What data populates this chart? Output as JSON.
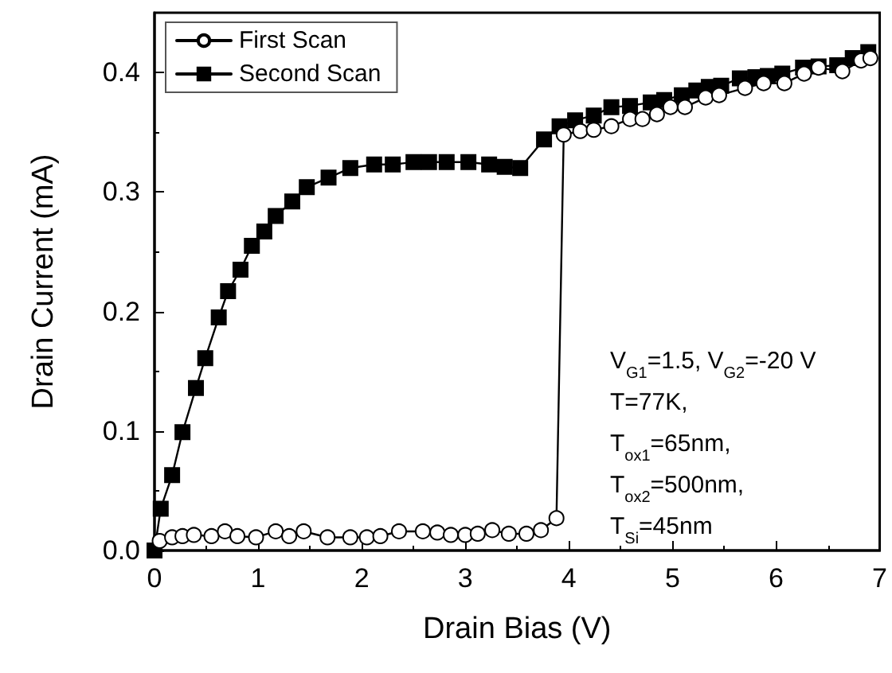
{
  "chart_data": {
    "type": "line",
    "xlabel": "Drain Bias (V)",
    "ylabel": "Drain Current (mA)",
    "xlim": [
      0,
      7
    ],
    "xticks": [
      0,
      1,
      2,
      3,
      4,
      5,
      6,
      7
    ],
    "ylim": [
      0,
      0.45
    ],
    "yticks": [
      {
        "value": 0,
        "label": "0.0"
      },
      0.1,
      0.2,
      0.3,
      0.4
    ],
    "grid": false,
    "legend": "top left",
    "line_style": "solid",
    "annotations": [
      "V$_{G1}$=1.5, V$_{G2}$=-20 V",
      "T=77K,",
      "T$_{ox1}$=65nm,",
      "T$_{ox2}$=500nm,",
      "T$_{Si}$=45nm"
    ],
    "series": [
      {
        "name": "First Scan",
        "color": "#000000",
        "marker": "circle",
        "x": [
          0.05,
          0.17,
          0.27,
          0.38,
          0.55,
          0.68,
          0.8,
          0.98,
          1.17,
          1.3,
          1.44,
          1.67,
          1.89,
          2.05,
          2.18,
          2.36,
          2.59,
          2.73,
          2.86,
          3.0,
          3.12,
          3.26,
          3.42,
          3.59,
          3.73,
          3.88,
          3.95,
          4.11,
          4.24,
          4.41,
          4.59,
          4.71,
          4.85,
          4.98,
          5.12,
          5.32,
          5.45,
          5.7,
          5.88,
          6.08,
          6.27,
          6.41,
          6.64,
          6.82,
          6.91
        ],
        "values": [
          0.008,
          0.011,
          0.012,
          0.013,
          0.012,
          0.016,
          0.012,
          0.011,
          0.016,
          0.012,
          0.016,
          0.011,
          0.011,
          0.011,
          0.012,
          0.016,
          0.016,
          0.015,
          0.013,
          0.013,
          0.014,
          0.017,
          0.014,
          0.014,
          0.017,
          0.027,
          0.348,
          0.351,
          0.352,
          0.355,
          0.361,
          0.361,
          0.365,
          0.371,
          0.371,
          0.379,
          0.381,
          0.387,
          0.391,
          0.391,
          0.399,
          0.404,
          0.401,
          0.41,
          0.412
        ]
      },
      {
        "name": "Second Scan",
        "color": "#000000",
        "marker": "square",
        "x": [
          0.0,
          0.06,
          0.17,
          0.27,
          0.4,
          0.49,
          0.62,
          0.71,
          0.83,
          0.94,
          1.06,
          1.17,
          1.33,
          1.47,
          1.68,
          1.89,
          2.12,
          2.3,
          2.5,
          2.65,
          2.82,
          3.03,
          3.23,
          3.38,
          3.53,
          3.76,
          3.91,
          4.06,
          4.24,
          4.41,
          4.59,
          4.79,
          4.92,
          5.09,
          5.23,
          5.35,
          5.47,
          5.65,
          5.8,
          5.92,
          6.06,
          6.26,
          6.41,
          6.59,
          6.74,
          6.89
        ],
        "values": [
          0.0,
          0.035,
          0.063,
          0.099,
          0.136,
          0.161,
          0.195,
          0.217,
          0.235,
          0.255,
          0.267,
          0.28,
          0.292,
          0.304,
          0.312,
          0.32,
          0.323,
          0.323,
          0.325,
          0.325,
          0.325,
          0.325,
          0.323,
          0.321,
          0.32,
          0.344,
          0.355,
          0.36,
          0.364,
          0.371,
          0.372,
          0.375,
          0.377,
          0.381,
          0.385,
          0.388,
          0.389,
          0.395,
          0.396,
          0.397,
          0.399,
          0.404,
          0.405,
          0.406,
          0.412,
          0.417
        ]
      }
    ]
  }
}
